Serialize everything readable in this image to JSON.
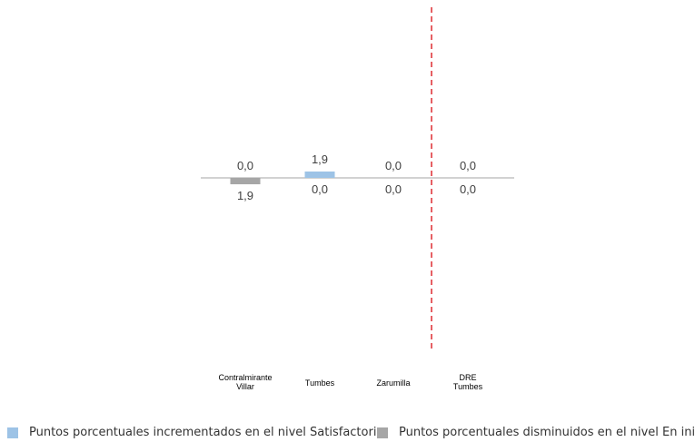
{
  "chart_data": {
    "type": "bar",
    "categories": [
      "Contralmirante Villar",
      "Tumbes",
      "Zarumilla",
      "DRE Tumbes"
    ],
    "category_lines": [
      [
        "Contralmirante",
        "Villar"
      ],
      [
        "Tumbes"
      ],
      [
        "Zarumilla"
      ],
      [
        "DRE",
        "Tumbes"
      ]
    ],
    "series": [
      {
        "name": "Puntos porcentuales incrementados en el nivel Satisfactorio",
        "values": [
          0.0,
          1.9,
          0.0,
          0.0
        ],
        "labels": [
          "0,0",
          "1,9",
          "0,0",
          "0,0"
        ],
        "color": "#9dc3e6",
        "direction": "up"
      },
      {
        "name": "Puntos porcentuales disminuidos en el nivel En inicio",
        "values": [
          1.9,
          0.0,
          0.0,
          0.0
        ],
        "labels": [
          "1,9",
          "0,0",
          "0,0",
          "0,0"
        ],
        "color": "#a6a6a6",
        "direction": "down"
      }
    ],
    "divider": {
      "after_category": "Zarumilla",
      "style": "dashed",
      "color": "#e0393e"
    },
    "axis_color": "#a6a6a6",
    "label_color": "#404040",
    "legend_position": "bottom"
  }
}
